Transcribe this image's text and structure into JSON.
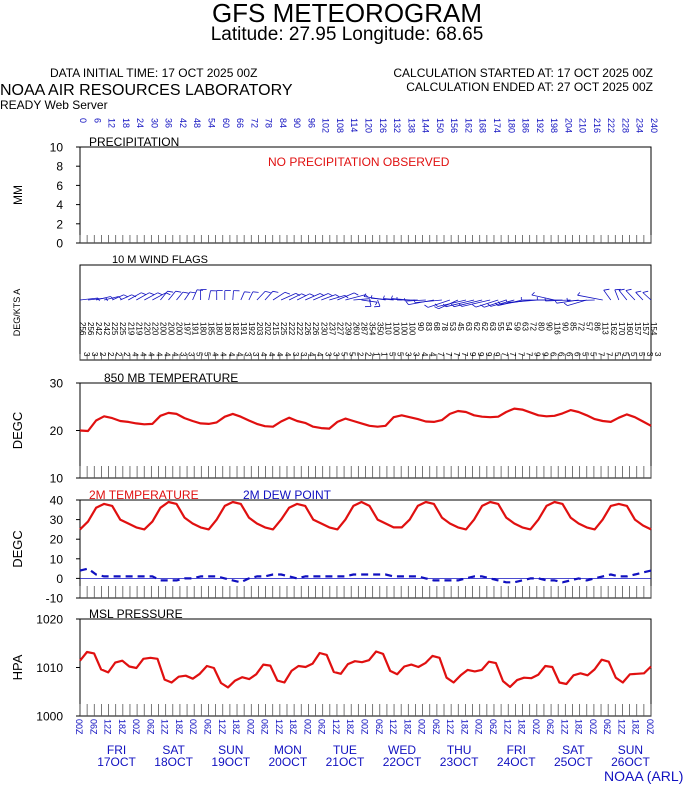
{
  "header": {
    "title": "GFS METEOROGRAM",
    "subtitle": "Latitude: 27.95 Longitude:  68.65",
    "initial_time": "DATA INITIAL TIME: 17 OCT 2025 00Z",
    "calc_started": "CALCULATION STARTED AT: 17 OCT 2025 00Z",
    "calc_ended": "CALCULATION ENDED AT: 27 OCT 2025 00Z",
    "lab": "NOAA AIR RESOURCES LABORATORY",
    "server": "READY Web Server",
    "credit": "NOAA (ARL)"
  },
  "colors": {
    "red": "#e01010",
    "blue": "#1010c0",
    "black": "#000000"
  },
  "forecast_hours": [
    "0",
    "6",
    "12",
    "18",
    "24",
    "30",
    "36",
    "42",
    "48",
    "54",
    "60",
    "66",
    "72",
    "78",
    "84",
    "90",
    "96",
    "102",
    "108",
    "114",
    "120",
    "126",
    "132",
    "138",
    "144",
    "150",
    "156",
    "162",
    "168",
    "174",
    "180",
    "186",
    "192",
    "198",
    "204",
    "210",
    "216",
    "222",
    "228",
    "234",
    "240"
  ],
  "utc_hours": [
    "00",
    "06",
    "12",
    "18"
  ],
  "days": [
    {
      "dow": "FRI",
      "date": "17OCT"
    },
    {
      "dow": "SAT",
      "date": "18OCT"
    },
    {
      "dow": "SUN",
      "date": "19OCT"
    },
    {
      "dow": "MON",
      "date": "20OCT"
    },
    {
      "dow": "TUE",
      "date": "21OCT"
    },
    {
      "dow": "WED",
      "date": "22OCT"
    },
    {
      "dow": "THU",
      "date": "23OCT"
    },
    {
      "dow": "FRI",
      "date": "24OCT"
    },
    {
      "dow": "SAT",
      "date": "25OCT"
    },
    {
      "dow": "SUN",
      "date": "26OCT"
    }
  ],
  "chart_data": [
    {
      "type": "bar",
      "title": "PRECIPITATION",
      "ylabel": "MM",
      "ylim": [
        0,
        10
      ],
      "yticks": [
        "0",
        "2",
        "4",
        "6",
        "8",
        "10"
      ],
      "annotation": "NO PRECIPITATION OBSERVED",
      "values": []
    },
    {
      "type": "wind_barbs",
      "title": "10 M  WIND FLAGS",
      "ylabel": "DEG/KTS  A",
      "direction_deg": [
        256,
        256,
        242,
        242,
        225,
        225,
        219,
        219,
        220,
        220,
        200,
        200,
        200,
        197,
        191,
        180,
        185,
        180,
        180,
        182,
        191,
        192,
        203,
        202,
        215,
        225,
        222,
        222,
        226,
        226,
        230,
        237,
        227,
        239,
        260,
        287,
        354,
        350,
        110,
        100,
        100,
        100,
        90,
        83,
        68,
        78,
        53,
        45,
        63,
        62,
        62,
        63,
        55,
        54,
        59,
        63,
        72,
        80,
        90,
        116,
        90,
        85,
        72,
        57,
        86,
        113,
        162,
        170,
        160,
        157,
        157,
        154
      ],
      "speed_kts": [
        3,
        3,
        2,
        2,
        2,
        2,
        4,
        4,
        4,
        4,
        4,
        4,
        3,
        3,
        5,
        5,
        4,
        4,
        4,
        4,
        3,
        3,
        4,
        4,
        4,
        4,
        3,
        3,
        4,
        4,
        3,
        3,
        5,
        5,
        2,
        2,
        1,
        1,
        5,
        5,
        3,
        3,
        4,
        4,
        7,
        7,
        7,
        7,
        9,
        9,
        9,
        9,
        7,
        7,
        7,
        7,
        9,
        9,
        6,
        6,
        6,
        6,
        5,
        5,
        7,
        7,
        5,
        5,
        5,
        5,
        3,
        3
      ]
    },
    {
      "type": "line",
      "title": "850 MB  TEMPERATURE",
      "ylabel": "DEGC",
      "ylim": [
        10,
        30
      ],
      "yticks": [
        "10",
        "20",
        "30"
      ],
      "series": [
        {
          "values": [
            20.0,
            19.9,
            22.1,
            23.0,
            22.6,
            22.0,
            21.8,
            21.5,
            21.3,
            21.4,
            23.1,
            23.7,
            23.5,
            22.6,
            22.0,
            21.5,
            21.4,
            21.7,
            22.9,
            23.5,
            22.9,
            22.1,
            21.4,
            20.9,
            20.8,
            21.9,
            22.7,
            22.0,
            21.6,
            20.8,
            20.5,
            20.4,
            21.8,
            22.5,
            22.0,
            21.5,
            21.0,
            20.8,
            21.0,
            22.8,
            23.2,
            22.8,
            22.4,
            21.9,
            21.8,
            22.2,
            23.5,
            24.1,
            23.9,
            23.2,
            22.9,
            22.8,
            22.9,
            23.9,
            24.6,
            24.4,
            23.8,
            23.2,
            23.0,
            23.1,
            23.6,
            24.3,
            23.9,
            23.2,
            22.4,
            22.0,
            21.8,
            22.7,
            23.4,
            22.8,
            21.9,
            21.0
          ]
        }
      ]
    },
    {
      "type": "line",
      "ylabel": "DEGC",
      "ylim": [
        -10,
        40
      ],
      "yticks": [
        "-10",
        "0",
        "10",
        "20",
        "30",
        "40"
      ],
      "series": [
        {
          "name": "2M TEMPERATURE",
          "values": [
            25,
            29,
            36,
            38,
            37,
            30,
            28,
            26,
            25,
            29,
            36,
            39,
            38,
            31,
            28,
            26,
            25,
            30,
            37,
            39,
            38,
            31,
            28,
            26,
            25,
            30,
            36,
            38,
            37,
            30,
            28,
            26,
            25,
            30,
            37,
            39,
            37,
            30,
            28,
            26,
            26,
            30,
            37,
            39,
            38,
            31,
            28,
            26,
            25,
            30,
            37,
            39,
            38,
            31,
            28,
            26,
            25,
            30,
            37,
            39,
            38,
            31,
            28,
            26,
            25,
            30,
            37,
            38,
            37,
            30,
            27,
            25
          ]
        },
        {
          "name": "2M  DEW POINT",
          "values": [
            4,
            5,
            2,
            1,
            1,
            1,
            1,
            1,
            1,
            1,
            -1,
            -1,
            -1,
            0,
            0,
            1,
            1,
            1,
            0,
            -1,
            -2,
            0,
            1,
            1,
            2,
            2,
            1,
            0,
            1,
            1,
            1,
            1,
            1,
            1,
            2,
            2,
            2,
            2,
            2,
            1,
            1,
            1,
            1,
            0,
            -1,
            -1,
            -1,
            -1,
            0,
            1,
            1,
            0,
            -1,
            -2,
            -2,
            -1,
            0,
            0,
            -1,
            -1,
            -2,
            -1,
            0,
            -1,
            0,
            1,
            2,
            1,
            1,
            2,
            3,
            4
          ]
        }
      ]
    },
    {
      "type": "line",
      "title": "MSL PRESSURE",
      "ylabel": "HPA",
      "ylim": [
        1000,
        1020
      ],
      "yticks": [
        "1000",
        "1010",
        "1020"
      ],
      "series": [
        {
          "values": [
            1011.4,
            1013.2,
            1012.9,
            1009.6,
            1009.0,
            1011.0,
            1011.4,
            1010.2,
            1009.9,
            1011.8,
            1012.0,
            1011.8,
            1007.5,
            1006.9,
            1008.1,
            1008.3,
            1007.7,
            1008.7,
            1010.3,
            1009.9,
            1006.8,
            1005.9,
            1007.3,
            1008.0,
            1007.6,
            1008.6,
            1010.6,
            1010.4,
            1007.3,
            1006.9,
            1009.3,
            1010.3,
            1010.1,
            1010.8,
            1013.0,
            1012.6,
            1009.1,
            1008.7,
            1010.7,
            1011.3,
            1011.1,
            1011.5,
            1013.3,
            1012.8,
            1009.3,
            1008.6,
            1010.2,
            1010.6,
            1010.1,
            1010.9,
            1012.4,
            1012.0,
            1007.9,
            1006.9,
            1008.4,
            1009.5,
            1009.2,
            1009.5,
            1011.2,
            1010.9,
            1007.2,
            1006.0,
            1007.4,
            1007.9,
            1007.8,
            1008.5,
            1010.3,
            1010.1,
            1006.9,
            1006.6,
            1008.4,
            1008.8,
            1008.4,
            1009.6,
            1011.6,
            1011.2,
            1007.9,
            1006.9,
            1008.6,
            1008.7,
            1008.8,
            1010.2
          ]
        }
      ]
    }
  ]
}
